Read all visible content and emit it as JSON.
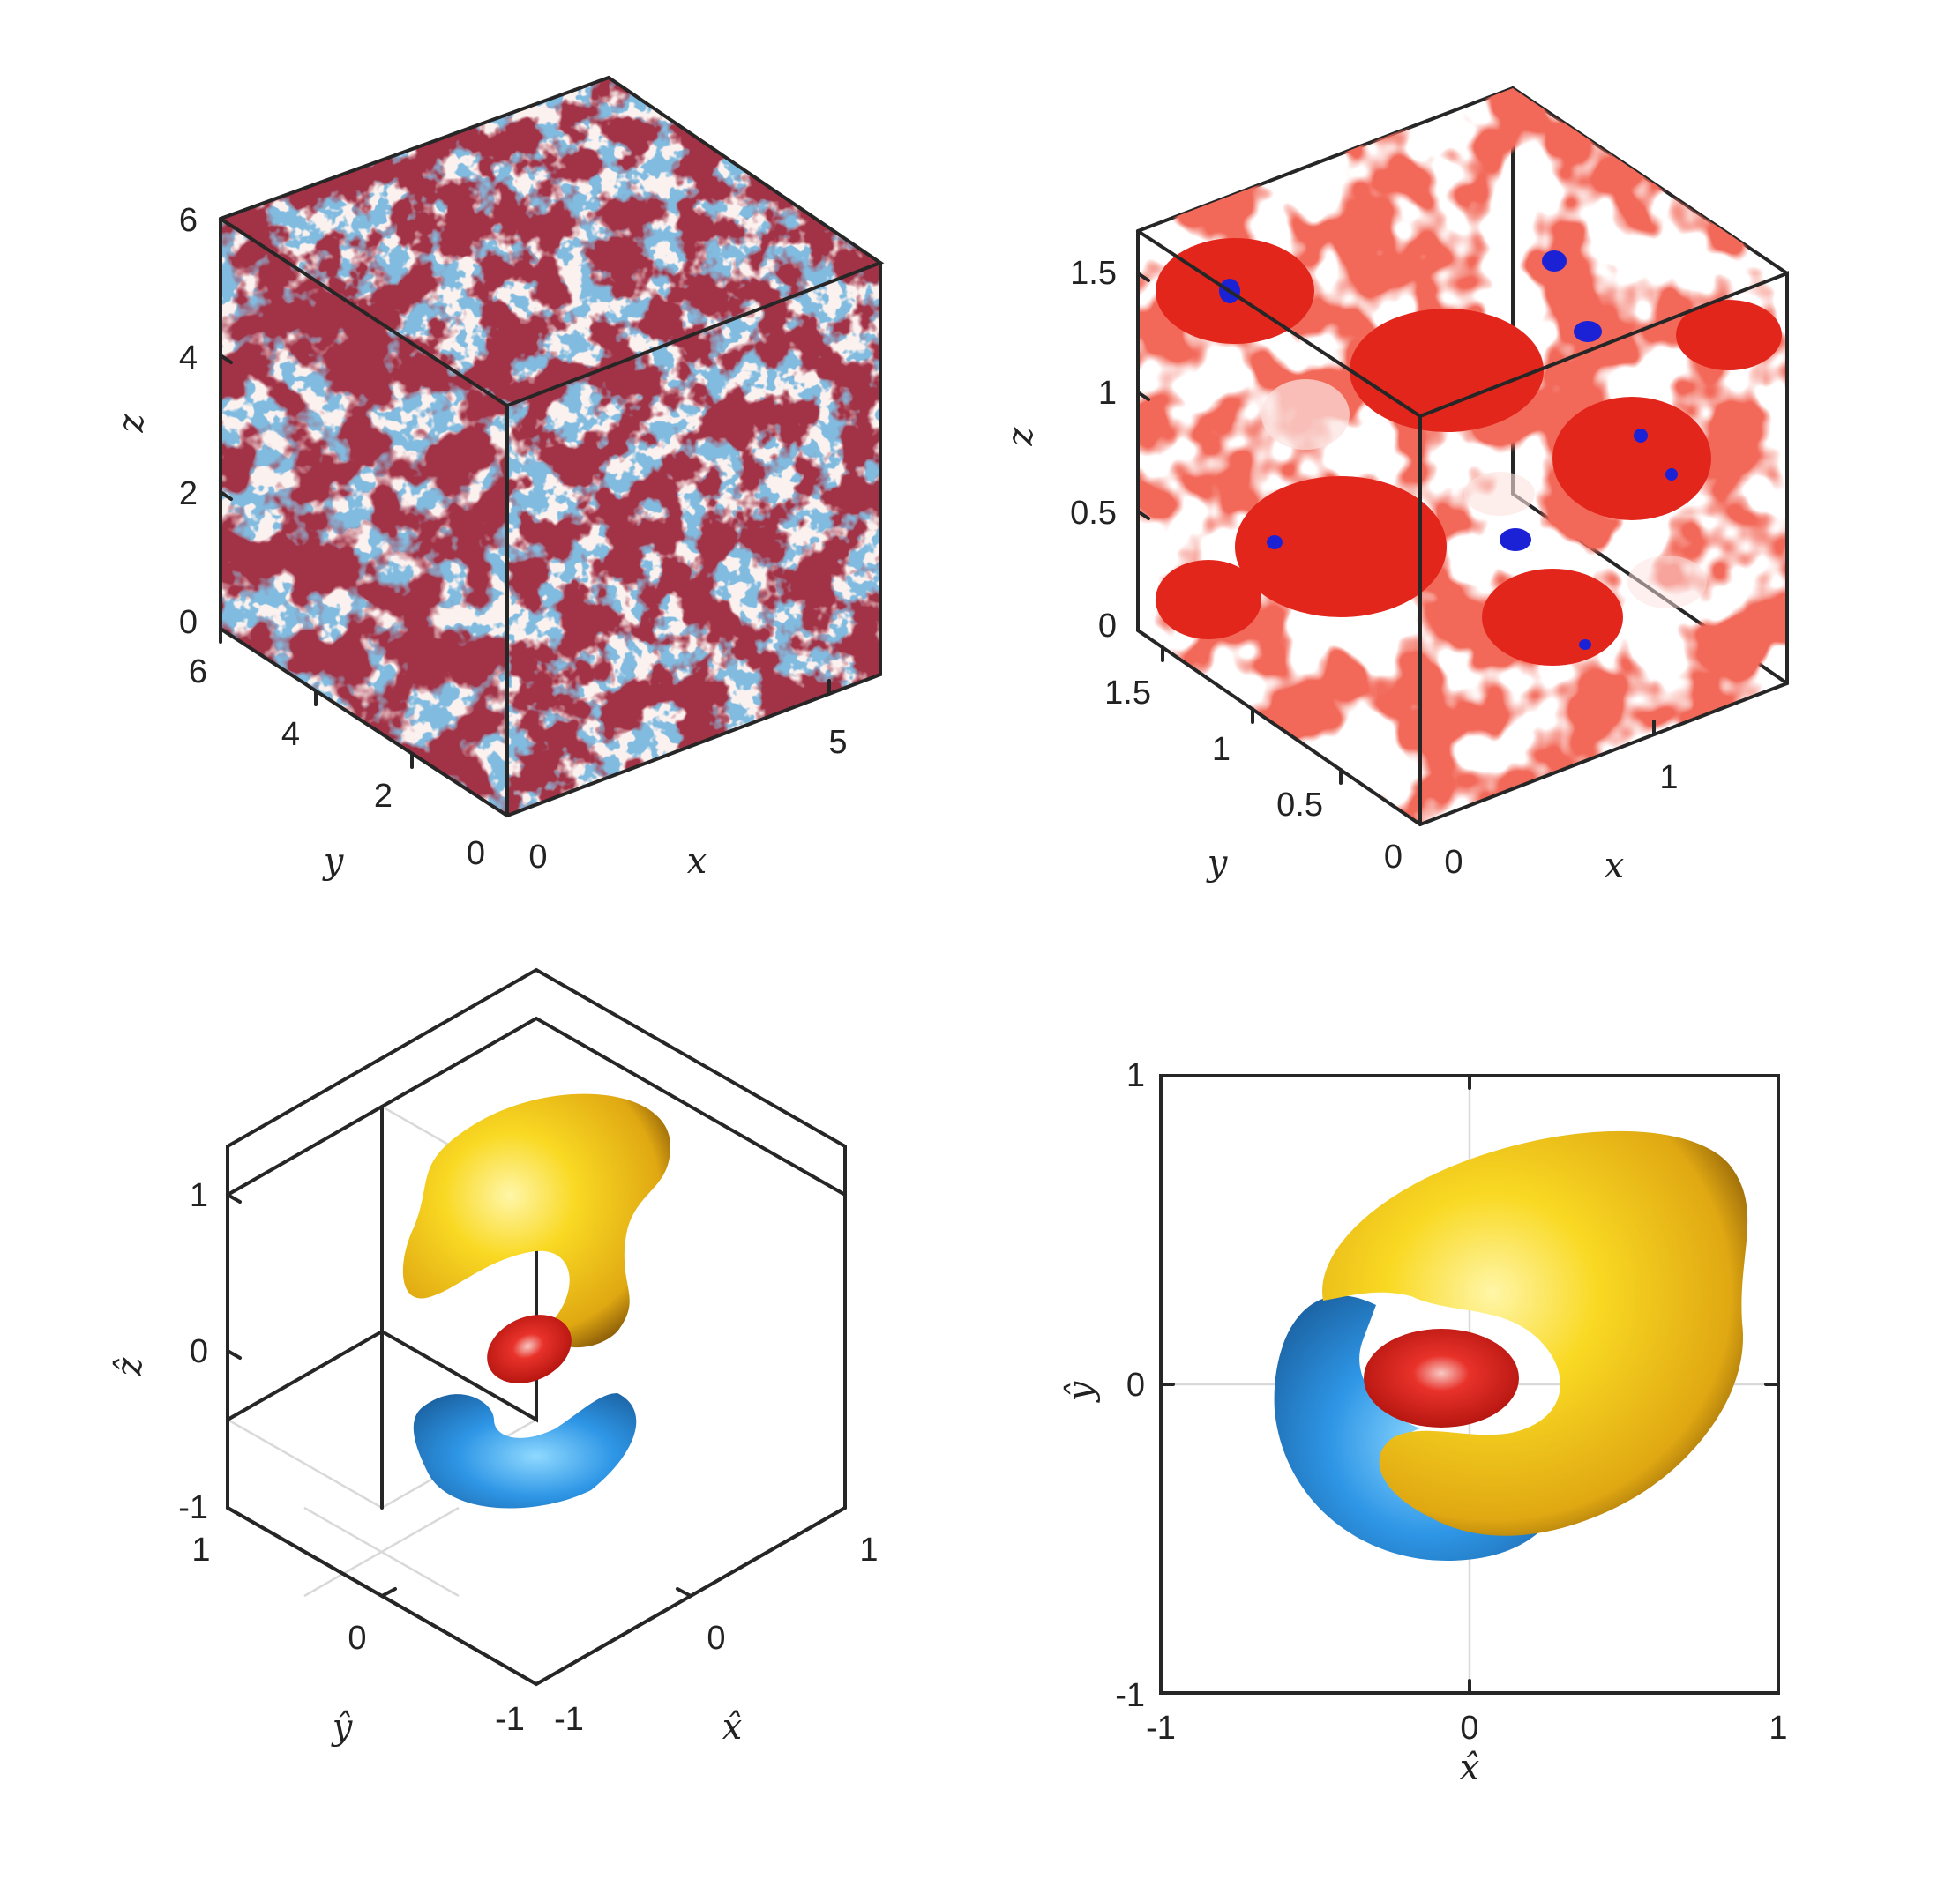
{
  "chart_data": [
    {
      "type": "other",
      "panel": "top-left",
      "description_kind": "3D cube with colored slices on faces",
      "x_ticks": [
        "0",
        "5"
      ],
      "y_ticks": [
        "0",
        "2",
        "4",
        "6"
      ],
      "z_ticks": [
        "0",
        "2",
        "4",
        "6"
      ],
      "xlabel": "x",
      "ylabel": "y",
      "zlabel": "z",
      "xlim": [
        0,
        6.28
      ],
      "ylim": [
        0,
        6.28
      ],
      "zlim": [
        0,
        6.28
      ],
      "colors": {
        "positive": "#5a0a12",
        "negative": "#3b7fb8",
        "background": "#fbf1ef"
      }
    },
    {
      "type": "other",
      "panel": "top-right",
      "description_kind": "3D isosurfaces in cube",
      "x_ticks": [
        "0",
        "1"
      ],
      "y_ticks": [
        "0",
        "0.5",
        "1",
        "1.5"
      ],
      "z_ticks": [
        "0",
        "0.5",
        "1",
        "1.5"
      ],
      "xlabel": "x",
      "ylabel": "y",
      "zlabel": "z",
      "xlim": [
        0,
        1.57
      ],
      "ylim": [
        0,
        1.57
      ],
      "zlim": [
        0,
        1.57
      ],
      "colors": {
        "positive": "#e3261c",
        "negative": "#1b22d6"
      }
    },
    {
      "type": "other",
      "panel": "bottom-left",
      "description_kind": "3D isometric isosurfaces",
      "x_ticks": [
        "-1",
        "0",
        "1"
      ],
      "y_ticks": [
        "-1",
        "0",
        "1"
      ],
      "z_ticks": [
        "-1",
        "0",
        "1"
      ],
      "xlabel": "x̂",
      "ylabel": "ŷ",
      "zlabel": "ẑ",
      "xlim": [
        -1,
        1
      ],
      "ylim": [
        -1,
        1
      ],
      "zlim": [
        -1,
        1
      ],
      "grid": true,
      "colors": {
        "yellow": "#f7d21c",
        "red": "#e2231a",
        "blue": "#2e8ee0"
      }
    },
    {
      "type": "other",
      "panel": "bottom-right",
      "description_kind": "top view of isosurfaces",
      "x_ticks": [
        "-1",
        "0",
        "1"
      ],
      "y_ticks": [
        "-1",
        "0",
        "1"
      ],
      "xlabel": "x̂",
      "ylabel": "ŷ",
      "xlim": [
        -1,
        1
      ],
      "ylim": [
        -1,
        1
      ],
      "grid": true,
      "colors": {
        "yellow": "#f7d21c",
        "red": "#e2231a",
        "blue": "#2e8ee0"
      }
    }
  ],
  "labels": {
    "tl": {
      "z6": "6",
      "z4": "4",
      "z2": "2",
      "z0": "0",
      "y6": "6",
      "y4": "4",
      "y2": "2",
      "y0": "0",
      "x0": "0",
      "x5": "5",
      "xl": "x",
      "yl": "y",
      "zl": "z"
    },
    "tr": {
      "z15": "1.5",
      "z1": "1",
      "z05": "0.5",
      "z0": "0",
      "y15": "1.5",
      "y1": "1",
      "y05": "0.5",
      "y0": "0",
      "x0": "0",
      "x1": "1",
      "xl": "x",
      "yl": "y",
      "zl": "z"
    },
    "bl": {
      "z1": "1",
      "z0": "0",
      "zm1": "-1",
      "y1": "1",
      "y0": "0",
      "ym1": "-1",
      "xm1": "-1",
      "x0": "0",
      "x1": "1",
      "xl": "x̂",
      "yl": "ŷ",
      "zl": "ẑ"
    },
    "br": {
      "y1": "1",
      "y0": "0",
      "ym1": "-1",
      "xm1": "-1",
      "x0": "0",
      "x1": "1",
      "xl": "x̂",
      "yl": "ŷ"
    }
  }
}
